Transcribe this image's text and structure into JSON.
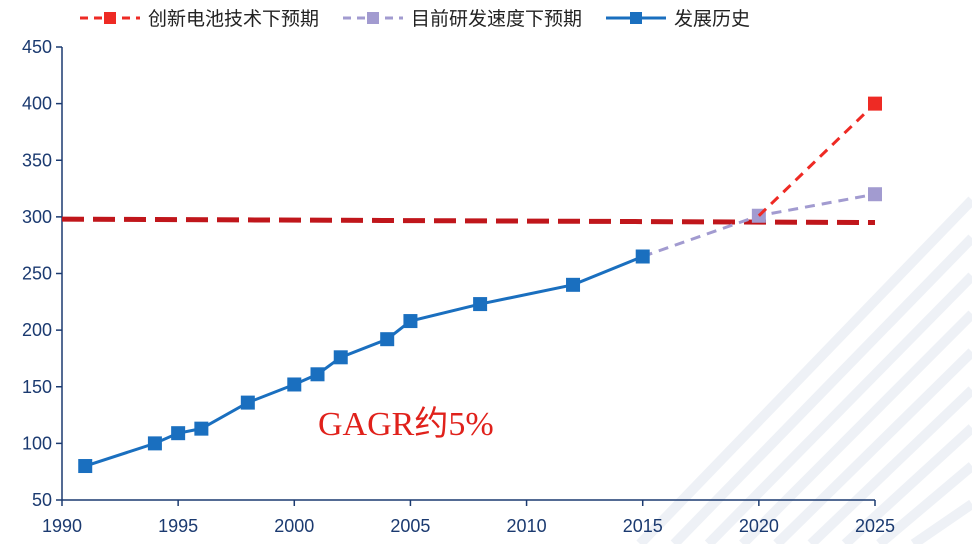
{
  "legend": {
    "items": [
      {
        "label": "创新电池技术下预期",
        "color": "#ee2a24",
        "style": "dashed-red"
      },
      {
        "label": "目前研发速度下预期",
        "color": "#a29bd0",
        "style": "dashed-purple"
      },
      {
        "label": "发展历史",
        "color": "#1a6fbf",
        "style": "solid-blue"
      }
    ]
  },
  "annotation": {
    "text": "GAGR约5%",
    "color": "#e0211b"
  },
  "chart_data": {
    "type": "line",
    "title": "",
    "xlabel": "",
    "ylabel": "",
    "xlim": [
      1990,
      2025
    ],
    "ylim": [
      50,
      450
    ],
    "x_ticks": [
      1990,
      1995,
      2000,
      2005,
      2010,
      2015,
      2020,
      2025
    ],
    "y_ticks": [
      50,
      100,
      150,
      200,
      250,
      300,
      350,
      400,
      450
    ],
    "grid": false,
    "legend_position": "top",
    "series": [
      {
        "name": "发展历史",
        "color": "#1a6fbf",
        "line": "solid",
        "marker": "square",
        "x": [
          1991,
          1994,
          1995,
          1996,
          1998,
          2000,
          2001,
          2002,
          2004,
          2005,
          2008,
          2012,
          2015
        ],
        "y": [
          80,
          100,
          109,
          113,
          136,
          152,
          161,
          176,
          192,
          208,
          223,
          240,
          265
        ]
      },
      {
        "name": "目前研发速度下预期",
        "color": "#a29bd0",
        "line": "dashed",
        "marker": "square",
        "x": [
          2015,
          2020,
          2025
        ],
        "y": [
          265,
          301,
          320
        ],
        "marker_x": [
          2020,
          2025
        ],
        "marker_y": [
          301,
          320
        ]
      },
      {
        "name": "创新电池技术下预期",
        "color": "#ee2a24",
        "line": "dashed",
        "marker": "square",
        "x": [
          2020,
          2025
        ],
        "y": [
          301,
          400
        ],
        "marker_x": [
          2025
        ],
        "marker_y": [
          400
        ]
      }
    ],
    "reference_line": {
      "color": "#c0161b",
      "line": "dashed",
      "x": [
        1990,
        2025
      ],
      "y": [
        298,
        295
      ]
    }
  }
}
